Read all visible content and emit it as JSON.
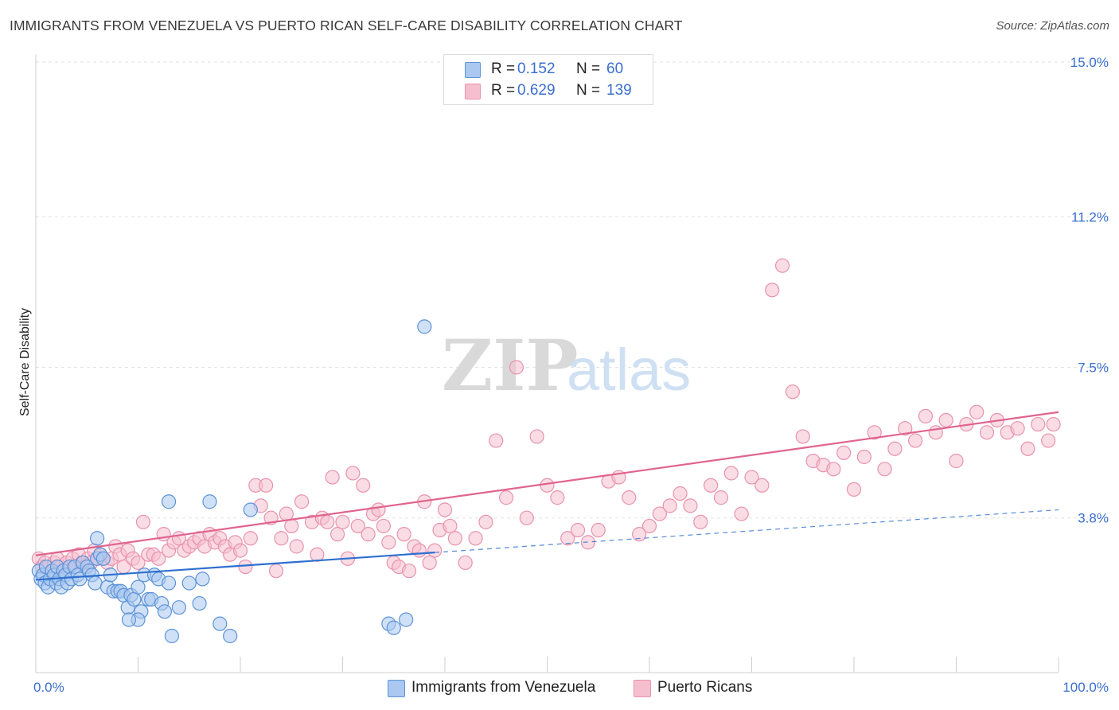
{
  "header": {
    "title": "IMMIGRANTS FROM VENEZUELA VS PUERTO RICAN SELF-CARE DISABILITY CORRELATION CHART",
    "source": "Source: ZipAtlas.com"
  },
  "watermark": {
    "part1": "ZIP",
    "part2": "atlas"
  },
  "legend": {
    "series1": {
      "r_label": "R =",
      "r_value": "0.152",
      "n_label": "N =",
      "n_value": "60"
    },
    "series2": {
      "r_label": "R =",
      "r_value": "0.629",
      "n_label": "N =",
      "n_value": "139"
    }
  },
  "colors": {
    "blue_fill": "#aac8f0",
    "blue_stroke": "#5d93d8",
    "blue_line": "#2e6fcf",
    "pink_fill": "#f6bfd0",
    "pink_stroke": "#e893ae",
    "pink_line": "#e0648e",
    "tick_text": "#3b6fcf",
    "grid": "#e2e2e2"
  },
  "chart_data": {
    "type": "scatter",
    "title": "IMMIGRANTS FROM VENEZUELA VS PUERTO RICAN SELF-CARE DISABILITY CORRELATION CHART",
    "xlabel": "",
    "ylabel": "Self-Care Disability",
    "xlim": [
      0,
      100
    ],
    "ylim": [
      0,
      15
    ],
    "x_tick_labels": [
      {
        "value": 0,
        "label": "0.0%"
      },
      {
        "value": 100,
        "label": "100.0%"
      }
    ],
    "y_ticks": [
      {
        "value": 3.8,
        "label": "3.8%"
      },
      {
        "value": 7.5,
        "label": "7.5%"
      },
      {
        "value": 11.2,
        "label": "11.2%"
      },
      {
        "value": 15.0,
        "label": "15.0%"
      }
    ],
    "x_minor_ticks": [
      0,
      10,
      20,
      30,
      40,
      50,
      60,
      70,
      80,
      90,
      100
    ],
    "grid": true,
    "series": [
      {
        "name": "Immigrants from Venezuela",
        "color": "blue",
        "trend": {
          "x0": 0,
          "y0": 2.28,
          "x1": 39,
          "y1": 2.95,
          "dash_to_x": 100,
          "dash_to_y": 4.0
        },
        "points": [
          [
            0.3,
            2.5
          ],
          [
            0.5,
            2.3
          ],
          [
            0.7,
            2.4
          ],
          [
            0.9,
            2.2
          ],
          [
            1.0,
            2.6
          ],
          [
            1.2,
            2.1
          ],
          [
            1.4,
            2.3
          ],
          [
            1.6,
            2.5
          ],
          [
            1.8,
            2.4
          ],
          [
            2.0,
            2.2
          ],
          [
            2.1,
            2.6
          ],
          [
            2.3,
            2.3
          ],
          [
            2.5,
            2.1
          ],
          [
            2.7,
            2.5
          ],
          [
            2.9,
            2.4
          ],
          [
            3.1,
            2.2
          ],
          [
            3.3,
            2.6
          ],
          [
            3.5,
            2.3
          ],
          [
            3.8,
            2.6
          ],
          [
            4.1,
            2.4
          ],
          [
            4.3,
            2.3
          ],
          [
            4.6,
            2.7
          ],
          [
            5.0,
            2.6
          ],
          [
            5.2,
            2.5
          ],
          [
            5.5,
            2.4
          ],
          [
            5.8,
            2.2
          ],
          [
            6.0,
            2.8
          ],
          [
            6.3,
            2.9
          ],
          [
            6.6,
            2.8
          ],
          [
            7.0,
            2.1
          ],
          [
            7.3,
            2.4
          ],
          [
            7.6,
            2.0
          ],
          [
            8.0,
            2.0
          ],
          [
            8.3,
            2.0
          ],
          [
            8.6,
            1.9
          ],
          [
            9.0,
            1.6
          ],
          [
            9.3,
            1.9
          ],
          [
            9.6,
            1.8
          ],
          [
            10.0,
            2.1
          ],
          [
            10.3,
            1.5
          ],
          [
            10.6,
            2.4
          ],
          [
            11.0,
            1.8
          ],
          [
            11.3,
            1.8
          ],
          [
            11.6,
            2.4
          ],
          [
            12.0,
            2.3
          ],
          [
            12.3,
            1.7
          ],
          [
            12.6,
            1.5
          ],
          [
            13.0,
            2.2
          ],
          [
            13.3,
            0.9
          ],
          [
            14.0,
            1.6
          ],
          [
            15.0,
            2.2
          ],
          [
            16.0,
            1.7
          ],
          [
            16.3,
            2.3
          ],
          [
            17.0,
            4.2
          ],
          [
            18.0,
            1.2
          ],
          [
            19.0,
            0.9
          ],
          [
            21.0,
            4.0
          ],
          [
            34.5,
            1.2
          ],
          [
            35.0,
            1.1
          ],
          [
            38.0,
            8.5
          ],
          [
            36.2,
            1.3
          ],
          [
            10.0,
            1.3
          ],
          [
            9.1,
            1.3
          ],
          [
            13.0,
            4.2
          ],
          [
            6.0,
            3.3
          ]
        ]
      },
      {
        "name": "Puerto Ricans",
        "color": "pink",
        "trend": {
          "x0": 0,
          "y0": 2.88,
          "x1": 100,
          "y1": 6.4
        },
        "points": [
          [
            0.3,
            2.8
          ],
          [
            0.6,
            2.6
          ],
          [
            0.9,
            2.7
          ],
          [
            1.2,
            2.6
          ],
          [
            1.5,
            2.5
          ],
          [
            1.8,
            2.7
          ],
          [
            2.1,
            2.8
          ],
          [
            2.4,
            2.6
          ],
          [
            2.7,
            2.5
          ],
          [
            3.0,
            2.7
          ],
          [
            3.3,
            2.6
          ],
          [
            3.6,
            2.8
          ],
          [
            3.9,
            2.6
          ],
          [
            4.2,
            2.9
          ],
          [
            4.5,
            2.7
          ],
          [
            4.8,
            2.6
          ],
          [
            5.1,
            2.8
          ],
          [
            5.4,
            2.7
          ],
          [
            5.7,
            3.0
          ],
          [
            6.0,
            2.8
          ],
          [
            6.3,
            2.9
          ],
          [
            6.6,
            2.8
          ],
          [
            7.0,
            2.7
          ],
          [
            7.4,
            2.8
          ],
          [
            7.8,
            3.1
          ],
          [
            8.2,
            2.9
          ],
          [
            8.6,
            2.6
          ],
          [
            9.0,
            3.0
          ],
          [
            9.5,
            2.8
          ],
          [
            10.0,
            2.7
          ],
          [
            10.5,
            3.7
          ],
          [
            11.0,
            2.9
          ],
          [
            11.5,
            2.9
          ],
          [
            12.0,
            2.8
          ],
          [
            12.5,
            3.4
          ],
          [
            13.0,
            3.0
          ],
          [
            13.5,
            3.2
          ],
          [
            14.0,
            3.3
          ],
          [
            14.5,
            3.0
          ],
          [
            15.0,
            3.1
          ],
          [
            15.5,
            3.2
          ],
          [
            16.0,
            3.3
          ],
          [
            16.5,
            3.1
          ],
          [
            17.0,
            3.4
          ],
          [
            17.5,
            3.2
          ],
          [
            18.0,
            3.3
          ],
          [
            18.5,
            3.1
          ],
          [
            19.0,
            2.9
          ],
          [
            19.5,
            3.2
          ],
          [
            20.0,
            3.0
          ],
          [
            20.5,
            2.6
          ],
          [
            21.0,
            3.3
          ],
          [
            21.5,
            4.6
          ],
          [
            22.0,
            4.1
          ],
          [
            22.5,
            4.6
          ],
          [
            23.0,
            3.8
          ],
          [
            23.5,
            2.5
          ],
          [
            24.0,
            3.3
          ],
          [
            24.5,
            3.9
          ],
          [
            25.0,
            3.6
          ],
          [
            25.5,
            3.1
          ],
          [
            26.0,
            4.2
          ],
          [
            27.0,
            3.7
          ],
          [
            27.5,
            2.9
          ],
          [
            28.0,
            3.8
          ],
          [
            28.5,
            3.7
          ],
          [
            29.0,
            4.8
          ],
          [
            29.5,
            3.4
          ],
          [
            30.0,
            3.7
          ],
          [
            30.5,
            2.8
          ],
          [
            31.0,
            4.9
          ],
          [
            31.5,
            3.6
          ],
          [
            32.0,
            4.6
          ],
          [
            32.5,
            3.4
          ],
          [
            33.0,
            3.9
          ],
          [
            33.5,
            4.0
          ],
          [
            34.0,
            3.6
          ],
          [
            34.5,
            3.2
          ],
          [
            35.0,
            2.7
          ],
          [
            35.5,
            2.6
          ],
          [
            36.0,
            3.4
          ],
          [
            36.5,
            2.5
          ],
          [
            37.0,
            3.1
          ],
          [
            37.5,
            3.0
          ],
          [
            38.0,
            4.2
          ],
          [
            38.5,
            2.7
          ],
          [
            39.0,
            3.0
          ],
          [
            39.5,
            3.5
          ],
          [
            40.0,
            4.0
          ],
          [
            40.5,
            3.6
          ],
          [
            41.0,
            3.3
          ],
          [
            42.0,
            2.7
          ],
          [
            43.0,
            3.3
          ],
          [
            44.0,
            3.7
          ],
          [
            45.0,
            5.7
          ],
          [
            46.0,
            4.3
          ],
          [
            47.0,
            7.5
          ],
          [
            48.0,
            3.8
          ],
          [
            49.0,
            5.8
          ],
          [
            50.0,
            4.6
          ],
          [
            51.0,
            4.3
          ],
          [
            52.0,
            3.3
          ],
          [
            53.0,
            3.5
          ],
          [
            54.0,
            3.2
          ],
          [
            55.0,
            3.5
          ],
          [
            56.0,
            4.7
          ],
          [
            57.0,
            4.8
          ],
          [
            58.0,
            4.3
          ],
          [
            59.0,
            3.4
          ],
          [
            60.0,
            3.6
          ],
          [
            61.0,
            3.9
          ],
          [
            62.0,
            4.1
          ],
          [
            63.0,
            4.4
          ],
          [
            64.0,
            4.1
          ],
          [
            65.0,
            3.7
          ],
          [
            66.0,
            4.6
          ],
          [
            67.0,
            4.3
          ],
          [
            68.0,
            4.9
          ],
          [
            69.0,
            3.9
          ],
          [
            70.0,
            4.8
          ],
          [
            71.0,
            4.6
          ],
          [
            72.0,
            9.4
          ],
          [
            73.0,
            10.0
          ],
          [
            74.0,
            6.9
          ],
          [
            75.0,
            5.8
          ],
          [
            76.0,
            5.2
          ],
          [
            77.0,
            5.1
          ],
          [
            78.0,
            5.0
          ],
          [
            79.0,
            5.4
          ],
          [
            80.0,
            4.5
          ],
          [
            81.0,
            5.3
          ],
          [
            82.0,
            5.9
          ],
          [
            83.0,
            5.0
          ],
          [
            84.0,
            5.5
          ],
          [
            85.0,
            6.0
          ],
          [
            86.0,
            5.7
          ],
          [
            87.0,
            6.3
          ],
          [
            88.0,
            5.9
          ],
          [
            89.0,
            6.2
          ],
          [
            90.0,
            5.2
          ],
          [
            91.0,
            6.1
          ],
          [
            92.0,
            6.4
          ],
          [
            93.0,
            5.9
          ],
          [
            94.0,
            6.2
          ],
          [
            95.0,
            5.9
          ],
          [
            96.0,
            6.0
          ],
          [
            97.0,
            5.5
          ],
          [
            98.0,
            6.1
          ],
          [
            99.0,
            5.7
          ],
          [
            99.5,
            6.1
          ]
        ]
      }
    ]
  },
  "bottom_legend": {
    "series1": "Immigrants from Venezuela",
    "series2": "Puerto Ricans"
  }
}
